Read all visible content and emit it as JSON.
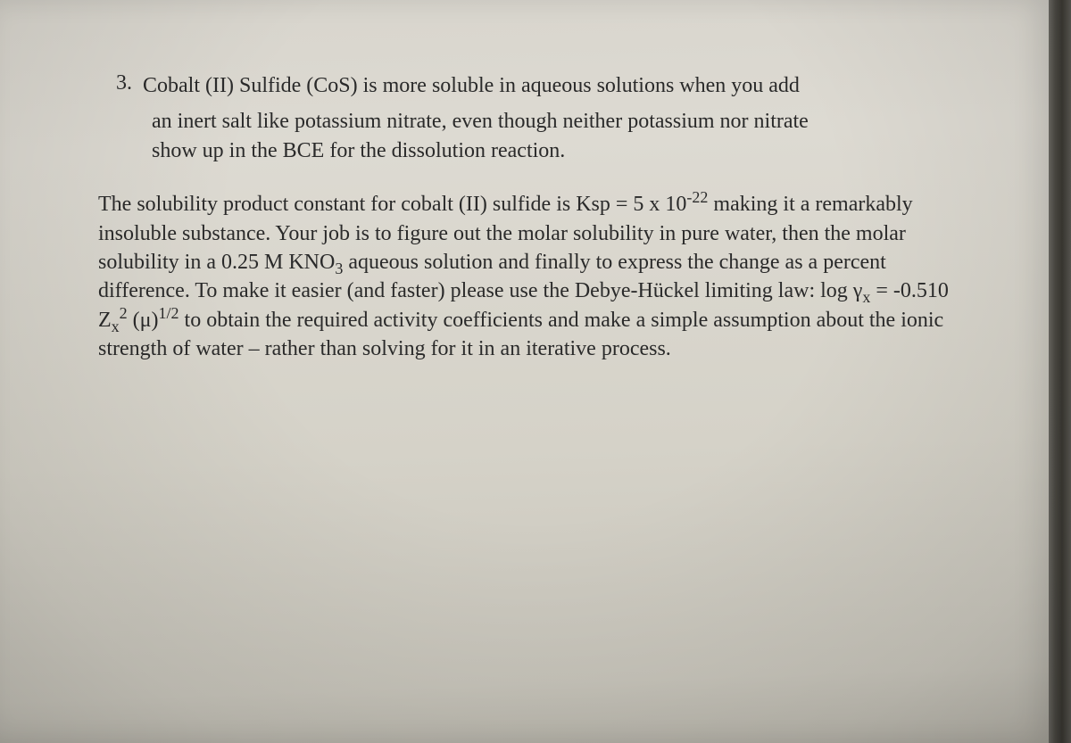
{
  "document": {
    "problem_number": "3.",
    "intro_line1": "Cobalt (II) Sulfide (CoS) is more soluble in aqueous solutions when you add",
    "intro_line2": "an inert salt like potassium nitrate, even though neither potassium nor nitrate",
    "intro_line3": "show up in the BCE for the dissolution reaction.",
    "para_part1": "The solubility product constant for cobalt (II) sulfide is Ksp = 5 x 10",
    "para_exp1": "-22",
    "para_part2": " making it a remarkably insoluble substance. Your job is to figure out the molar solubility in pure water, then the molar solubility in a 0.25 M KNO",
    "para_sub1": "3",
    "para_part3": " aqueous solution and finally to express the change as a percent difference. To make it easier (and faster) please use the Debye-Hückel limiting law: log γ",
    "para_sub2": "x",
    "para_part4": " = -0.510 Z",
    "para_sub3": "x",
    "para_exp2": "2",
    "para_part5": " (μ)",
    "para_exp3": "1/2",
    "para_part6": " to obtain the required activity coefficients and make a simple assumption about the ionic strength of water – rather than solving for it in an iterative process."
  },
  "styling": {
    "page_bg_top": "#d8d5cd",
    "page_bg_bottom": "#b8b5ab",
    "text_color": "#2a2a2a",
    "font_size_pt": 24,
    "font_family": "Georgia, Times New Roman, serif",
    "line_height": 1.35,
    "edge_shadow": "#4a4842"
  }
}
